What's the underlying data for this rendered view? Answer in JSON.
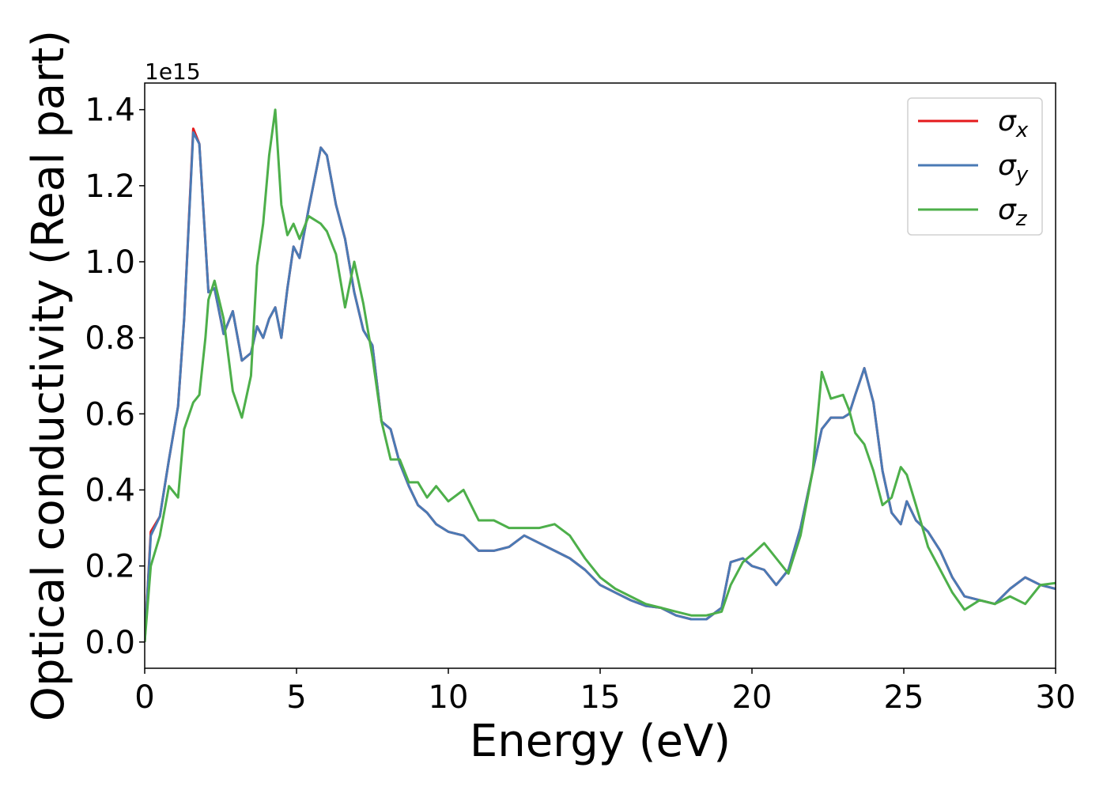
{
  "chart_data": {
    "type": "line",
    "xlabel": "Energy (eV)",
    "ylabel": "Optical conductivity (Real part)",
    "y_offset_label": "1e15",
    "x": [
      0,
      0.2,
      0.5,
      0.8,
      1.1,
      1.3,
      1.6,
      1.8,
      2.0,
      2.1,
      2.3,
      2.6,
      2.9,
      3.2,
      3.5,
      3.7,
      3.9,
      4.1,
      4.3,
      4.5,
      4.7,
      4.9,
      5.1,
      5.4,
      5.8,
      6.0,
      6.3,
      6.6,
      6.9,
      7.2,
      7.5,
      7.8,
      8.1,
      8.4,
      8.7,
      9.0,
      9.3,
      9.6,
      10.0,
      10.5,
      11,
      11.5,
      12,
      12.5,
      13,
      13.5,
      14,
      14.5,
      15,
      15.5,
      16,
      16.5,
      17,
      17.5,
      18,
      18.5,
      19,
      19.3,
      19.7,
      20,
      20.4,
      20.8,
      21.2,
      21.6,
      22,
      22.3,
      22.6,
      23,
      23.2,
      23.4,
      23.7,
      24,
      24.3,
      24.6,
      24.9,
      25.1,
      25.4,
      25.8,
      26.2,
      26.6,
      27,
      27.5,
      28,
      28.5,
      29,
      29.5,
      30
    ],
    "series": [
      {
        "name": "σx",
        "color": "#e41a1c",
        "values": [
          0,
          0.29,
          0.33,
          0.48,
          0.62,
          0.85,
          1.35,
          1.31,
          1.05,
          0.92,
          0.93,
          0.81,
          0.87,
          0.74,
          0.76,
          0.83,
          0.8,
          0.85,
          0.88,
          0.8,
          0.93,
          1.04,
          1.01,
          1.14,
          1.3,
          1.28,
          1.15,
          1.06,
          0.92,
          0.82,
          0.78,
          0.58,
          0.56,
          0.47,
          0.41,
          0.36,
          0.34,
          0.31,
          0.29,
          0.28,
          0.24,
          0.24,
          0.25,
          0.28,
          0.26,
          0.24,
          0.22,
          0.19,
          0.15,
          0.13,
          0.11,
          0.095,
          0.09,
          0.07,
          0.06,
          0.06,
          0.09,
          0.21,
          0.22,
          0.2,
          0.19,
          0.15,
          0.19,
          0.3,
          0.45,
          0.56,
          0.59,
          0.59,
          0.6,
          0.65,
          0.72,
          0.63,
          0.45,
          0.34,
          0.31,
          0.37,
          0.32,
          0.29,
          0.24,
          0.17,
          0.12,
          0.11,
          0.1,
          0.14,
          0.17,
          0.15,
          0.14
        ]
      },
      {
        "name": "σy",
        "color": "#4a7ab5",
        "values": [
          0,
          0.28,
          0.33,
          0.48,
          0.62,
          0.85,
          1.34,
          1.31,
          1.05,
          0.92,
          0.93,
          0.81,
          0.87,
          0.74,
          0.76,
          0.83,
          0.8,
          0.85,
          0.88,
          0.8,
          0.93,
          1.04,
          1.01,
          1.14,
          1.3,
          1.28,
          1.15,
          1.06,
          0.92,
          0.82,
          0.78,
          0.58,
          0.56,
          0.47,
          0.41,
          0.36,
          0.34,
          0.31,
          0.29,
          0.28,
          0.24,
          0.24,
          0.25,
          0.28,
          0.26,
          0.24,
          0.22,
          0.19,
          0.15,
          0.13,
          0.11,
          0.095,
          0.09,
          0.07,
          0.06,
          0.06,
          0.09,
          0.21,
          0.22,
          0.2,
          0.19,
          0.15,
          0.19,
          0.3,
          0.45,
          0.56,
          0.59,
          0.59,
          0.6,
          0.65,
          0.72,
          0.63,
          0.45,
          0.34,
          0.31,
          0.37,
          0.32,
          0.29,
          0.24,
          0.17,
          0.12,
          0.11,
          0.1,
          0.14,
          0.17,
          0.15,
          0.14
        ]
      },
      {
        "name": "σz",
        "color": "#4daf4a",
        "values": [
          0,
          0.2,
          0.28,
          0.41,
          0.38,
          0.56,
          0.63,
          0.65,
          0.8,
          0.9,
          0.95,
          0.85,
          0.66,
          0.59,
          0.7,
          0.99,
          1.1,
          1.28,
          1.4,
          1.15,
          1.07,
          1.1,
          1.06,
          1.12,
          1.1,
          1.08,
          1.02,
          0.88,
          1.0,
          0.89,
          0.75,
          0.58,
          0.48,
          0.48,
          0.42,
          0.42,
          0.38,
          0.41,
          0.37,
          0.4,
          0.32,
          0.32,
          0.3,
          0.3,
          0.3,
          0.31,
          0.28,
          0.22,
          0.17,
          0.14,
          0.12,
          0.1,
          0.09,
          0.08,
          0.07,
          0.07,
          0.08,
          0.15,
          0.21,
          0.23,
          0.26,
          0.22,
          0.18,
          0.28,
          0.45,
          0.71,
          0.64,
          0.65,
          0.61,
          0.55,
          0.52,
          0.45,
          0.36,
          0.38,
          0.46,
          0.44,
          0.36,
          0.25,
          0.19,
          0.13,
          0.085,
          0.11,
          0.1,
          0.12,
          0.1,
          0.15,
          0.155
        ]
      }
    ],
    "xlim": [
      0,
      30
    ],
    "xticks": [
      0,
      5,
      10,
      15,
      20,
      25,
      30
    ],
    "ylim": [
      -0.069,
      1.47
    ],
    "yticks": [
      {
        "value": 0,
        "label": "0.0"
      },
      0.2,
      0.4,
      0.6,
      0.8,
      {
        "value": 1,
        "label": "1.0"
      },
      1.2,
      1.4
    ],
    "grid": false,
    "legend": "upper right"
  }
}
